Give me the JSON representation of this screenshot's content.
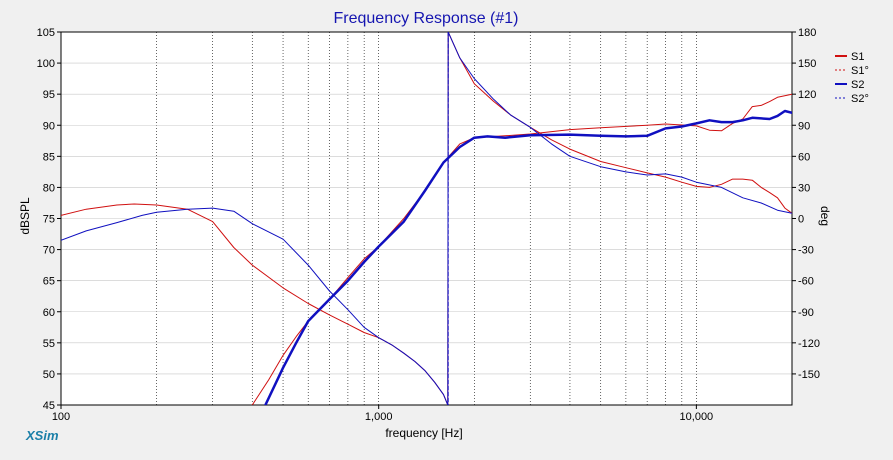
{
  "app": {
    "logo": "XSim"
  },
  "chart_data": {
    "type": "line",
    "title": "Frequency Response (#1)",
    "xlabel": "frequency [Hz]",
    "ylabel_left": "dBSPL",
    "ylabel_right": "deg",
    "x_scale": "log",
    "xlim": [
      100,
      20000
    ],
    "ylim_left": [
      45,
      105
    ],
    "ylim_right": [
      -180,
      180
    ],
    "grid": true,
    "legend_position": "top-right",
    "x_tick_labels": [
      {
        "x": 100,
        "label": "100"
      },
      {
        "x": 1000,
        "label": "1,000"
      },
      {
        "x": 10000,
        "label": "10,000"
      }
    ],
    "y_left_ticks": [
      45,
      50,
      55,
      60,
      65,
      70,
      75,
      80,
      85,
      90,
      95,
      100,
      105
    ],
    "y_right_ticks": [
      -150,
      -120,
      -90,
      -60,
      -30,
      0,
      30,
      60,
      90,
      120,
      150,
      180
    ],
    "series": [
      {
        "name": "S1",
        "axis": "left",
        "color": "#d01010",
        "style": "solid",
        "width": 1,
        "points": [
          [
            400,
            45
          ],
          [
            450,
            49
          ],
          [
            500,
            53
          ],
          [
            550,
            56
          ],
          [
            600,
            58.5
          ],
          [
            700,
            62
          ],
          [
            800,
            65.5
          ],
          [
            900,
            68.5
          ],
          [
            1000,
            70.5
          ],
          [
            1200,
            75
          ],
          [
            1400,
            79.5
          ],
          [
            1600,
            84
          ],
          [
            1800,
            87
          ],
          [
            2000,
            88
          ],
          [
            2500,
            88.3
          ],
          [
            3000,
            88.6
          ],
          [
            4000,
            89.3
          ],
          [
            5000,
            89.6
          ],
          [
            7000,
            90
          ],
          [
            8000,
            90.2
          ],
          [
            10000,
            89.9
          ],
          [
            11000,
            89.2
          ],
          [
            12000,
            89.1
          ],
          [
            13000,
            90.3
          ],
          [
            14000,
            91
          ],
          [
            15000,
            93
          ],
          [
            16000,
            93.2
          ],
          [
            17000,
            93.8
          ],
          [
            18000,
            94.5
          ],
          [
            20000,
            95
          ]
        ]
      },
      {
        "name": "S1°",
        "axis": "right",
        "color": "#d01010",
        "style": "dashed",
        "width": 1,
        "points": [
          [
            100,
            3
          ],
          [
            120,
            9
          ],
          [
            150,
            13
          ],
          [
            170,
            14
          ],
          [
            200,
            13
          ],
          [
            250,
            9
          ],
          [
            300,
            -3
          ],
          [
            350,
            -28
          ],
          [
            400,
            -45
          ],
          [
            500,
            -67
          ],
          [
            600,
            -82
          ],
          [
            700,
            -93
          ],
          [
            800,
            -102
          ],
          [
            900,
            -110
          ],
          [
            1000,
            -115
          ],
          [
            1100,
            -122
          ],
          [
            1200,
            -130
          ],
          [
            1300,
            -138
          ],
          [
            1400,
            -147
          ],
          [
            1500,
            -158
          ],
          [
            1600,
            -170
          ],
          [
            1650,
            -180
          ],
          [
            1655,
            180
          ],
          [
            1700,
            172
          ],
          [
            1800,
            155
          ],
          [
            2000,
            130
          ],
          [
            2300,
            113
          ],
          [
            2600,
            100
          ],
          [
            3000,
            88
          ],
          [
            3500,
            76
          ],
          [
            4000,
            67
          ],
          [
            5000,
            55
          ],
          [
            6000,
            49
          ],
          [
            7000,
            44
          ],
          [
            8000,
            40
          ],
          [
            9000,
            35
          ],
          [
            10000,
            31
          ],
          [
            11000,
            30
          ],
          [
            12000,
            33
          ],
          [
            13000,
            38
          ],
          [
            14000,
            38
          ],
          [
            15000,
            37
          ],
          [
            16000,
            30
          ],
          [
            17000,
            25
          ],
          [
            18000,
            20
          ],
          [
            19000,
            10
          ],
          [
            20000,
            5
          ]
        ]
      },
      {
        "name": "S2",
        "axis": "left",
        "color": "#1010c0",
        "style": "solid",
        "width": 2.5,
        "points": [
          [
            440,
            45
          ],
          [
            500,
            51
          ],
          [
            550,
            55
          ],
          [
            600,
            58.5
          ],
          [
            700,
            62
          ],
          [
            800,
            65
          ],
          [
            900,
            68
          ],
          [
            1000,
            70.5
          ],
          [
            1200,
            74.5
          ],
          [
            1400,
            79.5
          ],
          [
            1600,
            84
          ],
          [
            1800,
            86.5
          ],
          [
            2000,
            88
          ],
          [
            2200,
            88.2
          ],
          [
            2500,
            88
          ],
          [
            3000,
            88.4
          ],
          [
            4000,
            88.5
          ],
          [
            5000,
            88.3
          ],
          [
            6000,
            88.2
          ],
          [
            7000,
            88.3
          ],
          [
            8000,
            89.5
          ],
          [
            9000,
            89.8
          ],
          [
            10000,
            90.3
          ],
          [
            11000,
            90.8
          ],
          [
            12000,
            90.5
          ],
          [
            13000,
            90.5
          ],
          [
            14000,
            90.8
          ],
          [
            15000,
            91.2
          ],
          [
            17000,
            91
          ],
          [
            18000,
            91.5
          ],
          [
            19000,
            92.3
          ],
          [
            20000,
            92
          ]
        ]
      },
      {
        "name": "S2°",
        "axis": "right",
        "color": "#1010c0",
        "style": "dashed",
        "width": 1,
        "points": [
          [
            100,
            -21
          ],
          [
            120,
            -12
          ],
          [
            150,
            -4
          ],
          [
            180,
            3
          ],
          [
            200,
            6
          ],
          [
            250,
            9
          ],
          [
            300,
            10
          ],
          [
            350,
            7
          ],
          [
            400,
            -5
          ],
          [
            500,
            -20
          ],
          [
            600,
            -45
          ],
          [
            700,
            -70
          ],
          [
            800,
            -88
          ],
          [
            900,
            -105
          ],
          [
            1000,
            -115
          ],
          [
            1100,
            -122
          ],
          [
            1200,
            -130
          ],
          [
            1300,
            -138
          ],
          [
            1400,
            -147
          ],
          [
            1500,
            -158
          ],
          [
            1600,
            -170
          ],
          [
            1650,
            -180
          ],
          [
            1655,
            180
          ],
          [
            1700,
            172
          ],
          [
            1800,
            155
          ],
          [
            2000,
            135
          ],
          [
            2300,
            115
          ],
          [
            2600,
            100
          ],
          [
            3000,
            88
          ],
          [
            3500,
            72
          ],
          [
            4000,
            60
          ],
          [
            5000,
            50
          ],
          [
            6000,
            45
          ],
          [
            7000,
            42
          ],
          [
            8000,
            43
          ],
          [
            9000,
            40
          ],
          [
            10000,
            35
          ],
          [
            12000,
            30
          ],
          [
            14000,
            20
          ],
          [
            16000,
            15
          ],
          [
            18000,
            8
          ],
          [
            20000,
            5
          ]
        ]
      }
    ]
  }
}
